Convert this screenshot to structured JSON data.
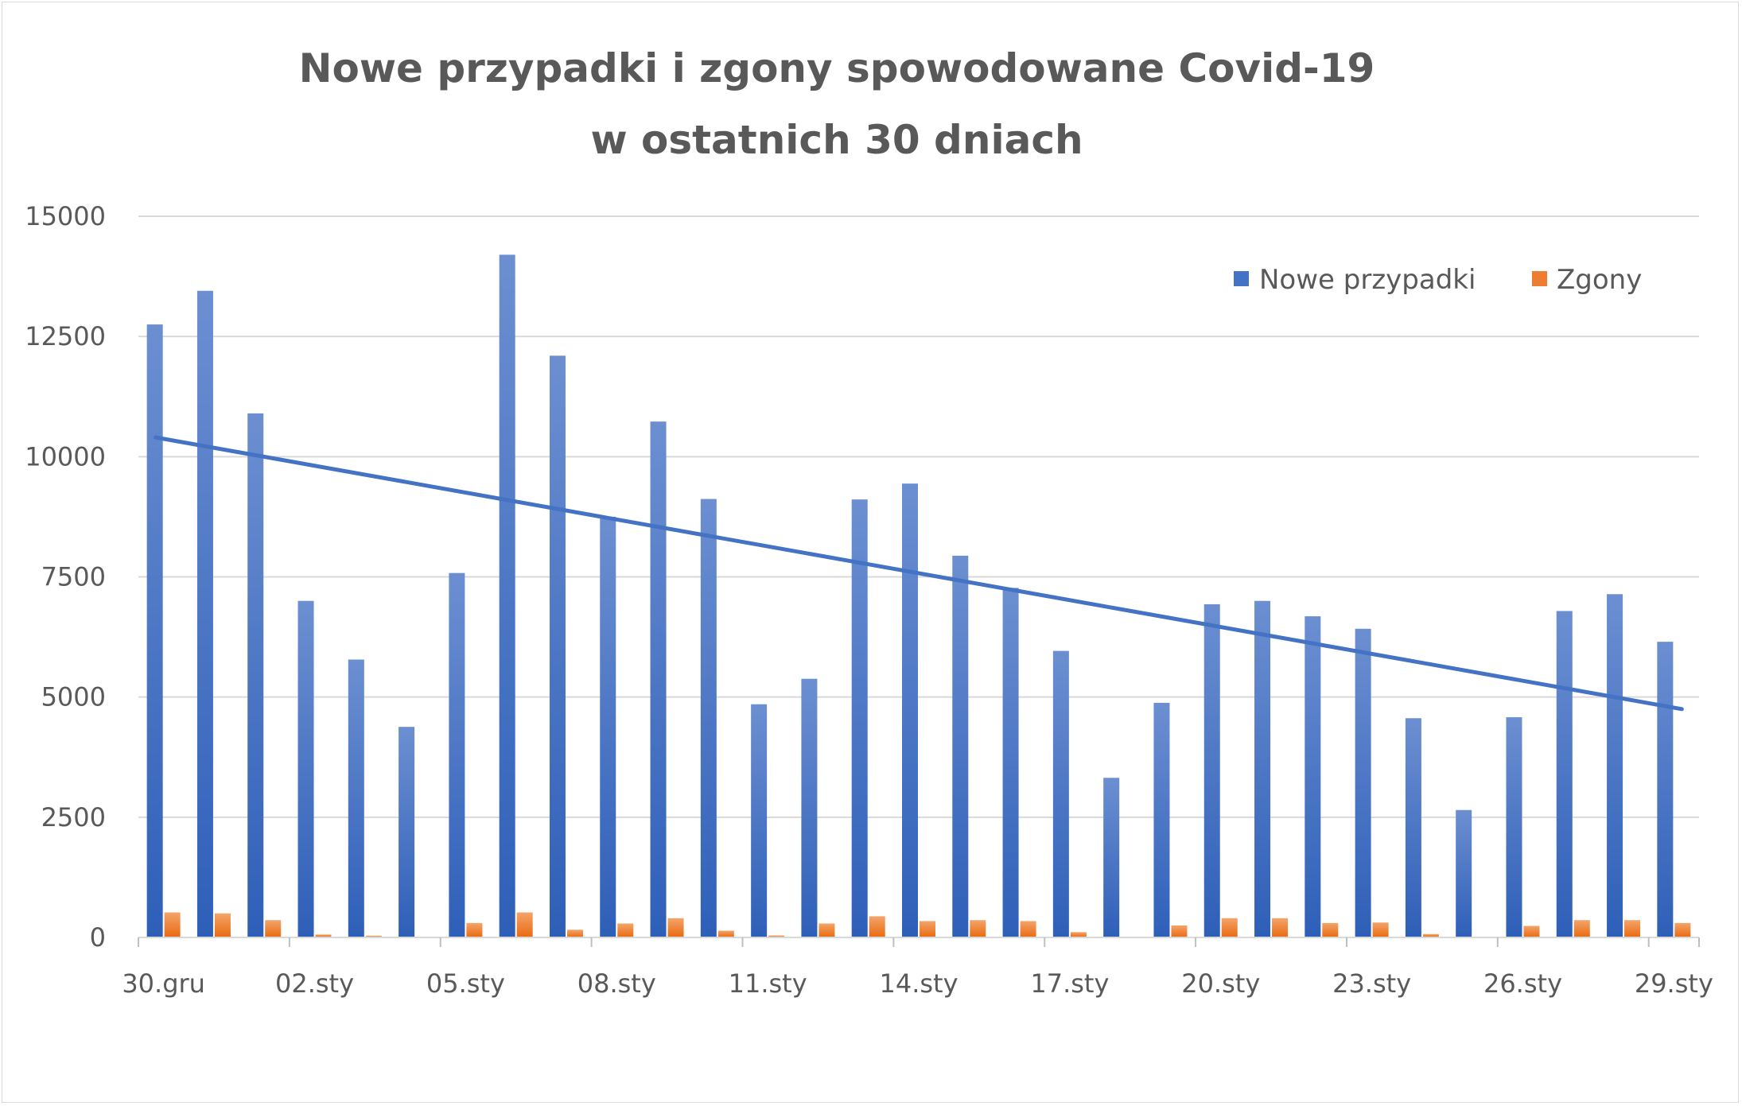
{
  "chart_data": {
    "type": "bar",
    "title_line1": "Nowe przypadki i zgony spowodowane Covid-19",
    "title_line2": "w ostatnich 30 dniach",
    "xlabel": "",
    "ylabel": "",
    "ylim": [
      0,
      15000
    ],
    "yticks": [
      "0",
      "2500",
      "5000",
      "7500",
      "10000",
      "12500",
      "15000"
    ],
    "ytick_values": [
      0,
      2500,
      5000,
      7500,
      10000,
      12500,
      15000
    ],
    "categories": [
      "30.gru",
      "31.gru",
      "01.sty",
      "02.sty",
      "03.sty",
      "04.sty",
      "05.sty",
      "06.sty",
      "07.sty",
      "08.sty",
      "09.sty",
      "10.sty",
      "11.sty",
      "12.sty",
      "13.sty",
      "14.sty",
      "15.sty",
      "16.sty",
      "17.sty",
      "18.sty",
      "19.sty",
      "20.sty",
      "21.sty",
      "22.sty",
      "23.sty",
      "24.sty",
      "25.sty",
      "26.sty",
      "27.sty",
      "28.sty",
      "29.sty"
    ],
    "xtick_labels": [
      "30.gru",
      "02.sty",
      "05.sty",
      "08.sty",
      "11.sty",
      "14.sty",
      "17.sty",
      "20.sty",
      "23.sty",
      "26.sty",
      "29.sty"
    ],
    "xtick_indices": [
      0,
      3,
      6,
      9,
      12,
      15,
      18,
      21,
      24,
      27,
      30
    ],
    "series": [
      {
        "name": "Nowe przypadki",
        "color": "#4472c4",
        "values": [
          12750,
          13450,
          10900,
          7000,
          5780,
          4380,
          7580,
          14200,
          12100,
          8750,
          10730,
          9120,
          4850,
          5380,
          9110,
          9440,
          7940,
          7270,
          5960,
          3320,
          4880,
          6930,
          7000,
          6680,
          6420,
          4560,
          2650,
          4580,
          6790,
          7140,
          6150
        ]
      },
      {
        "name": "Zgony",
        "color": "#ed7d31",
        "values": [
          520,
          500,
          360,
          60,
          35,
          5,
          300,
          520,
          160,
          290,
          400,
          140,
          40,
          290,
          440,
          340,
          360,
          340,
          110,
          5,
          250,
          400,
          400,
          300,
          310,
          70,
          5,
          240,
          360,
          360,
          300
        ]
      }
    ],
    "trendline": {
      "type": "linear",
      "series": "Nowe przypadki",
      "start": 10400,
      "end": 4750,
      "color": "#4472c4"
    },
    "legend_position": "top-right",
    "grid": true
  }
}
